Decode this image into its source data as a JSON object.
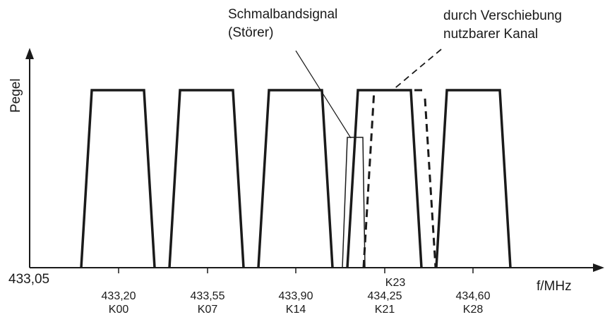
{
  "axes": {
    "y_label": "Pegel",
    "x_label": "f/MHz",
    "x_origin_label": "433,05"
  },
  "ticks": [
    {
      "freq": "433,20",
      "channel": "K00"
    },
    {
      "freq": "433,55",
      "channel": "K07"
    },
    {
      "freq": "433,90",
      "channel": "K14"
    },
    {
      "freq": "434,25",
      "channel": "K21"
    },
    {
      "freq": "434,60",
      "channel": "K28"
    }
  ],
  "extra_tick_label": "K23",
  "annotations": {
    "narrowband_line1": "Schmalbandsignal",
    "narrowband_line2": "(Störer)",
    "shifted_line1": "durch Verschiebung",
    "shifted_line2": "nutzbarer Kanal"
  },
  "chart_data": {
    "type": "diagram",
    "channels": [
      "K00",
      "K07",
      "K14",
      "K21",
      "K28"
    ],
    "center_frequencies_mhz": [
      433.2,
      433.55,
      433.9,
      434.25,
      434.6
    ],
    "shifted_channel": "K23",
    "interferer": "Schmalbandsignal (Störer)"
  }
}
